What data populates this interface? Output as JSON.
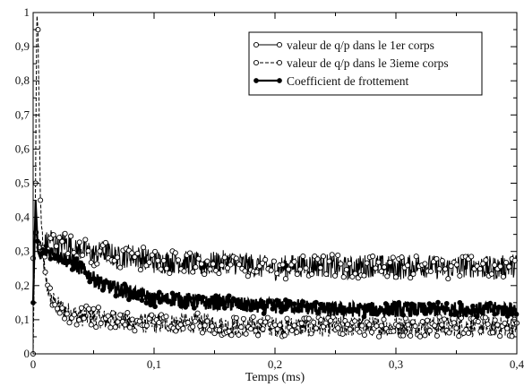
{
  "chart_data": {
    "type": "line",
    "title": "",
    "xlabel": "Temps (ms)",
    "ylabel": "",
    "xlim": [
      0,
      0.4
    ],
    "ylim": [
      0,
      1
    ],
    "x_ticks": [
      0,
      0.1,
      0.2,
      0.3,
      0.4
    ],
    "x_tick_labels": [
      "0",
      "0,1",
      "0,2",
      "0,3",
      "0,4"
    ],
    "y_ticks": [
      0,
      0.1,
      0.2,
      0.3,
      0.4,
      0.5,
      0.6,
      0.7,
      0.8,
      0.9,
      1
    ],
    "y_tick_labels": [
      "0",
      "0,1",
      "0,2",
      "0,3",
      "0,4",
      "0,5",
      "0,6",
      "0,7",
      "0,8",
      "0,9",
      "1"
    ],
    "grid": false,
    "legend_position": "top-right",
    "series": [
      {
        "name": "valeur de q/p dans le 1er corps",
        "style": "solid thin line with open circle markers",
        "color": "#000000",
        "x": [
          0,
          0.002,
          0.004,
          0.006,
          0.008,
          0.01,
          0.015,
          0.02,
          0.025,
          0.03,
          0.035,
          0.04,
          0.05,
          0.06,
          0.07,
          0.08,
          0.09,
          0.1,
          0.12,
          0.14,
          0.16,
          0.18,
          0.2,
          0.22,
          0.24,
          0.26,
          0.28,
          0.3,
          0.32,
          0.34,
          0.36,
          0.38,
          0.4
        ],
        "y": [
          0.28,
          0.37,
          0.3,
          0.33,
          0.29,
          0.32,
          0.34,
          0.31,
          0.33,
          0.32,
          0.3,
          0.31,
          0.29,
          0.3,
          0.28,
          0.29,
          0.28,
          0.27,
          0.27,
          0.26,
          0.27,
          0.26,
          0.25,
          0.26,
          0.26,
          0.25,
          0.26,
          0.25,
          0.26,
          0.25,
          0.26,
          0.25,
          0.26
        ]
      },
      {
        "name": "valeur de q/p dans le 3ieme corps",
        "style": "dashed thin line with open circle markers",
        "color": "#000000",
        "x": [
          0,
          0.002,
          0.003,
          0.004,
          0.005,
          0.006,
          0.008,
          0.01,
          0.015,
          0.02,
          0.025,
          0.03,
          0.04,
          0.05,
          0.06,
          0.07,
          0.08,
          0.1,
          0.12,
          0.14,
          0.16,
          0.18,
          0.2,
          0.22,
          0.24,
          0.26,
          0.28,
          0.3,
          0.32,
          0.34,
          0.36,
          0.38,
          0.4
        ],
        "y": [
          0,
          0.5,
          1.0,
          0.95,
          0.7,
          0.45,
          0.3,
          0.22,
          0.16,
          0.14,
          0.13,
          0.12,
          0.11,
          0.11,
          0.1,
          0.1,
          0.09,
          0.09,
          0.09,
          0.09,
          0.08,
          0.08,
          0.08,
          0.08,
          0.08,
          0.08,
          0.08,
          0.08,
          0.08,
          0.08,
          0.08,
          0.08,
          0.08
        ]
      },
      {
        "name": "Coefficient de frottement",
        "style": "thick solid line with filled circle markers",
        "color": "#000000",
        "x": [
          0,
          0.002,
          0.004,
          0.006,
          0.008,
          0.01,
          0.015,
          0.02,
          0.025,
          0.03,
          0.035,
          0.04,
          0.05,
          0.06,
          0.07,
          0.08,
          0.09,
          0.1,
          0.12,
          0.14,
          0.16,
          0.18,
          0.2,
          0.22,
          0.24,
          0.26,
          0.28,
          0.3,
          0.32,
          0.34,
          0.36,
          0.38,
          0.4
        ],
        "y": [
          0.15,
          0.45,
          0.3,
          0.28,
          0.3,
          0.3,
          0.3,
          0.29,
          0.28,
          0.27,
          0.26,
          0.25,
          0.22,
          0.2,
          0.19,
          0.18,
          0.17,
          0.16,
          0.16,
          0.15,
          0.15,
          0.14,
          0.14,
          0.14,
          0.13,
          0.13,
          0.13,
          0.13,
          0.13,
          0.13,
          0.13,
          0.13,
          0.13
        ]
      }
    ]
  }
}
